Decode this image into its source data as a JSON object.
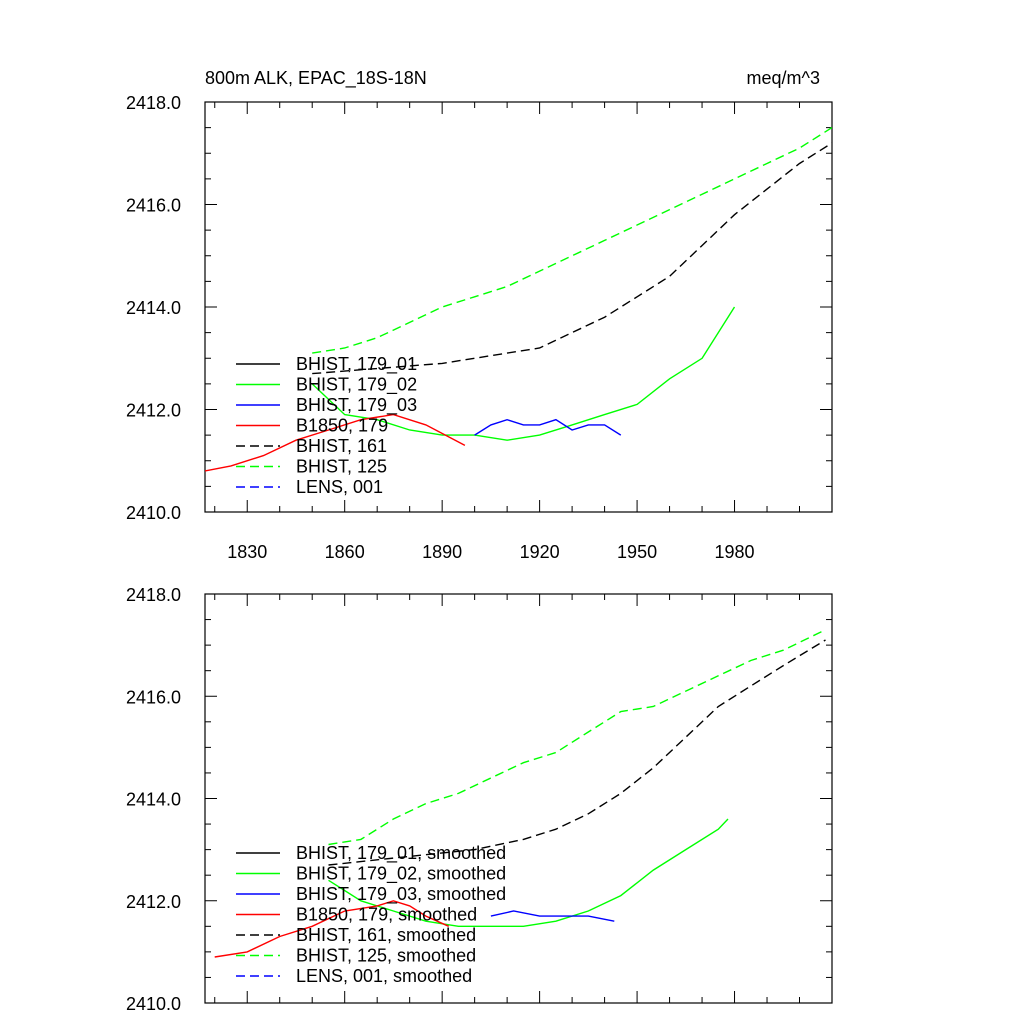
{
  "chart_data": [
    {
      "type": "line",
      "title": "800m ALK, EPAC_18S-18N",
      "units": "meq/m^3",
      "xlabel": "",
      "ylabel": "",
      "xlim": [
        1817,
        2010
      ],
      "ylim": [
        2410.0,
        2418.0
      ],
      "xticks": [
        1830,
        1860,
        1890,
        1920,
        1950,
        1980
      ],
      "xtick_labels": [
        "1830",
        "1860",
        "1890",
        "1920",
        "1950",
        "1980"
      ],
      "yticks": [
        2410.0,
        2412.0,
        2414.0,
        2416.0,
        2418.0
      ],
      "ytick_labels": [
        "2410.0",
        "2412.0",
        "2414.0",
        "2416.0",
        "2418.0"
      ],
      "grid": false,
      "legend_position": "bottom-left",
      "series": [
        {
          "name": "BHIST, 179_01",
          "color": "#000000",
          "dash": false,
          "x": [],
          "y": []
        },
        {
          "name": "BHIST, 179_02",
          "color": "#00ff00",
          "dash": false,
          "x": [
            1850,
            1860,
            1870,
            1880,
            1890,
            1900,
            1910,
            1920,
            1930,
            1940,
            1950,
            1960,
            1970,
            1980
          ],
          "y": [
            2412.5,
            2411.9,
            2411.8,
            2411.6,
            2411.5,
            2411.5,
            2411.4,
            2411.5,
            2411.7,
            2411.9,
            2412.1,
            2412.6,
            2413.0,
            2414.0
          ]
        },
        {
          "name": "BHIST, 179_03",
          "color": "#0000ff",
          "dash": false,
          "x": [
            1900,
            1905,
            1910,
            1915,
            1920,
            1925,
            1930,
            1935,
            1940,
            1945
          ],
          "y": [
            2411.5,
            2411.7,
            2411.8,
            2411.7,
            2411.7,
            2411.8,
            2411.6,
            2411.7,
            2411.7,
            2411.5
          ]
        },
        {
          "name": "B1850, 179",
          "color": "#ff0000",
          "dash": false,
          "x": [
            1817,
            1825,
            1835,
            1845,
            1855,
            1865,
            1875,
            1885,
            1897
          ],
          "y": [
            2410.8,
            2410.9,
            2411.1,
            2411.4,
            2411.6,
            2411.8,
            2411.9,
            2411.7,
            2411.3
          ]
        },
        {
          "name": "BHIST, 161",
          "color": "#000000",
          "dash": true,
          "x": [
            1850,
            1870,
            1890,
            1910,
            1920,
            1930,
            1940,
            1950,
            1960,
            1970,
            1980,
            1990,
            2000,
            2010
          ],
          "y": [
            2412.7,
            2412.8,
            2412.9,
            2413.1,
            2413.2,
            2413.5,
            2413.8,
            2414.2,
            2414.6,
            2415.2,
            2415.8,
            2416.3,
            2416.8,
            2417.2
          ]
        },
        {
          "name": "BHIST, 125",
          "color": "#00ff00",
          "dash": true,
          "x": [
            1850,
            1860,
            1870,
            1880,
            1890,
            1900,
            1910,
            1920,
            1930,
            1940,
            1950,
            1960,
            1970,
            1980,
            1990,
            2000,
            2010
          ],
          "y": [
            2413.1,
            2413.2,
            2413.4,
            2413.7,
            2414.0,
            2414.2,
            2414.4,
            2414.7,
            2415.0,
            2415.3,
            2415.6,
            2415.9,
            2416.2,
            2416.5,
            2416.8,
            2417.1,
            2417.5
          ]
        },
        {
          "name": "LENS, 001",
          "color": "#0000ff",
          "dash": true,
          "x": [],
          "y": []
        }
      ]
    },
    {
      "type": "line",
      "title": "",
      "units": "",
      "xlabel": "",
      "ylabel": "",
      "xlim": [
        1817,
        2010
      ],
      "ylim": [
        2410.0,
        2418.0
      ],
      "xticks": [
        1830,
        1860,
        1890,
        1920,
        1950,
        1980
      ],
      "xtick_labels": [],
      "yticks": [
        2410.0,
        2412.0,
        2414.0,
        2416.0,
        2418.0
      ],
      "ytick_labels": [
        "2410.0",
        "2412.0",
        "2414.0",
        "2416.0",
        "2418.0"
      ],
      "grid": false,
      "legend_position": "bottom-left",
      "series": [
        {
          "name": "BHIST, 179_01, smoothed",
          "color": "#000000",
          "dash": false,
          "x": [],
          "y": []
        },
        {
          "name": "BHIST, 179_02, smoothed",
          "color": "#00ff00",
          "dash": false,
          "x": [
            1855,
            1865,
            1875,
            1885,
            1895,
            1905,
            1915,
            1925,
            1935,
            1945,
            1955,
            1965,
            1975,
            1978
          ],
          "y": [
            2412.4,
            2412.0,
            2411.8,
            2411.6,
            2411.5,
            2411.5,
            2411.5,
            2411.6,
            2411.8,
            2412.1,
            2412.6,
            2413.0,
            2413.4,
            2413.6
          ]
        },
        {
          "name": "BHIST, 179_03, smoothed",
          "color": "#0000ff",
          "dash": false,
          "x": [
            1905,
            1912,
            1920,
            1928,
            1935,
            1943
          ],
          "y": [
            2411.7,
            2411.8,
            2411.7,
            2411.7,
            2411.7,
            2411.6
          ]
        },
        {
          "name": "B1850, 179, smoothed",
          "color": "#ff0000",
          "dash": false,
          "x": [
            1820,
            1830,
            1840,
            1850,
            1860,
            1870,
            1875,
            1880,
            1885,
            1892
          ],
          "y": [
            2410.9,
            2411.0,
            2411.3,
            2411.5,
            2411.8,
            2411.9,
            2412.0,
            2411.9,
            2411.7,
            2411.5
          ]
        },
        {
          "name": "BHIST, 161, smoothed",
          "color": "#000000",
          "dash": true,
          "x": [
            1855,
            1870,
            1885,
            1900,
            1915,
            1925,
            1935,
            1945,
            1955,
            1965,
            1975,
            1985,
            1995,
            2008
          ],
          "y": [
            2412.7,
            2412.8,
            2412.9,
            2413.0,
            2413.2,
            2413.4,
            2413.7,
            2414.1,
            2414.6,
            2415.2,
            2415.8,
            2416.2,
            2416.6,
            2417.1
          ]
        },
        {
          "name": "BHIST, 125, smoothed",
          "color": "#00ff00",
          "dash": true,
          "x": [
            1855,
            1865,
            1875,
            1885,
            1895,
            1905,
            1915,
            1925,
            1935,
            1945,
            1955,
            1965,
            1975,
            1985,
            1995,
            2008
          ],
          "y": [
            2413.1,
            2413.2,
            2413.6,
            2413.9,
            2414.1,
            2414.4,
            2414.7,
            2414.9,
            2415.3,
            2415.7,
            2415.8,
            2416.1,
            2416.4,
            2416.7,
            2416.9,
            2417.3
          ]
        },
        {
          "name": "LENS, 001, smoothed",
          "color": "#0000ff",
          "dash": true,
          "x": [],
          "y": []
        }
      ]
    }
  ]
}
